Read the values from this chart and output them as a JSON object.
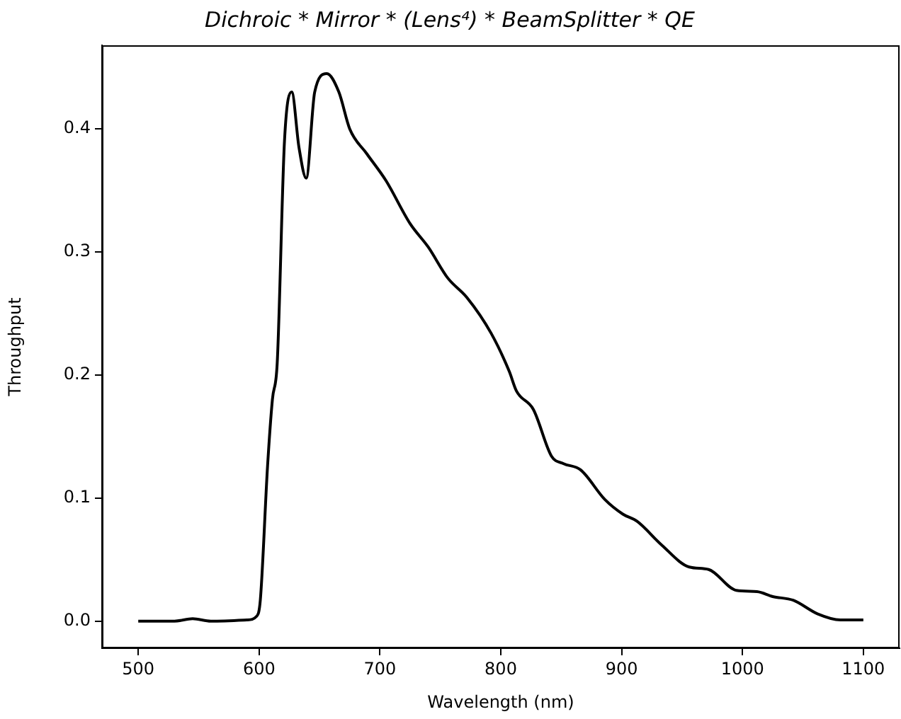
{
  "chart_data": {
    "type": "line",
    "title": "Dichroic * Mirror * (Lens⁴) * BeamSplitter * QE",
    "xlabel": "Wavelength (nm)",
    "ylabel": "Throughput",
    "series": [
      {
        "color": "#000000",
        "x": [
          500,
          530,
          545,
          560,
          590,
          598,
          601,
          607,
          611,
          615,
          621,
          627,
          633,
          639,
          646,
          656,
          666,
          675,
          689,
          705,
          725,
          740,
          756,
          772,
          792,
          807,
          813,
          827,
          842,
          852,
          866,
          886,
          901,
          913,
          933,
          956,
          972,
          995,
          1012,
          1025,
          1042,
          1062,
          1081,
          1100
        ],
        "values": [
          0,
          0,
          0.002,
          0,
          0.001,
          0.004,
          0.017,
          0.126,
          0.18,
          0.21,
          0.39,
          0.43,
          0.385,
          0.36,
          0.43,
          0.445,
          0.43,
          0.4,
          0.38,
          0.358,
          0.323,
          0.304,
          0.279,
          0.263,
          0.234,
          0.203,
          0.187,
          0.172,
          0.134,
          0.128,
          0.123,
          0.099,
          0.087,
          0.081,
          0.062,
          0.044,
          0.042,
          0.025,
          0.024,
          0.02,
          0.017,
          0.006,
          0.001,
          0.001
        ]
      }
    ],
    "xlim": [
      470,
      1130
    ],
    "xticks": [
      500,
      600,
      700,
      800,
      900,
      1000,
      1100
    ],
    "ylim": [
      -0.022,
      0.468
    ],
    "yticks": [
      {
        "value": 0,
        "label": "0.0"
      },
      {
        "value": 0.1,
        "label": "0.1"
      },
      {
        "value": 0.2,
        "label": "0.2"
      },
      {
        "value": 0.3,
        "label": "0.3"
      },
      {
        "value": 0.4,
        "label": "0.4"
      }
    ],
    "grid": false,
    "legend": false,
    "marker": "none",
    "line_style": "solid"
  }
}
